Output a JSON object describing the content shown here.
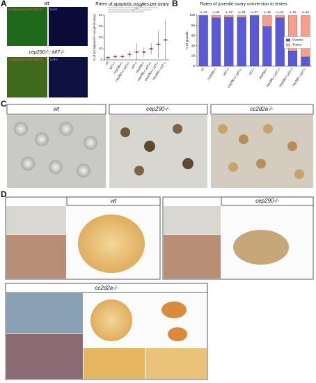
{
  "panel_labels": [
    "A",
    "B",
    "C",
    "D"
  ],
  "panel_a": {
    "row1_title": "wt",
    "row2_title": "cep290-/-; kif7-/-",
    "stain_left": "cCaspase3 DAPI DiOC6",
    "stain_right": "DAPI"
  },
  "panel_c": {
    "titles": [
      "wt",
      "cep290-/-",
      "cc2d2a-/-"
    ]
  },
  "panel_d": {
    "titles": [
      "wt",
      "cep290-/-",
      "cc2d2a-/-"
    ]
  },
  "chart_data": [
    {
      "type": "errorbar",
      "title": "Rates of apoptotic oocytes per ovary",
      "y_label": "% of (cCaspase3+ oocytes/ovary)",
      "categories": [
        "wt",
        "kif7+/-",
        "cep290+/-",
        "cep290+/-;kif7+/-",
        "kif7-/-",
        "cep290-/-",
        "cep290-/-;kif7+/-",
        "cep290+/-;kif7-/-",
        "cep290-/-;kif7-/-"
      ],
      "values": [
        2,
        3,
        3,
        5,
        7,
        7,
        10,
        14,
        18
      ],
      "errors": [
        1,
        2,
        2,
        3,
        8,
        4,
        5,
        12,
        18
      ],
      "color": "#d62728",
      "significance": [
        "***",
        "***",
        "**",
        "*"
      ],
      "ylim": [
        0,
        40
      ],
      "yticks": [
        0,
        10,
        20,
        30,
        40
      ]
    },
    {
      "type": "stacked_bar",
      "title": "Rates of juvenile ovary conversion to testes",
      "y_label": "% Of gonads",
      "categories": [
        "wt",
        "cep290+/-",
        "kif7+/-",
        "cep290+/-;kif7+/-",
        "kif7-/-",
        "cep290-/-",
        "cep290-/-;kif7+/-",
        "cep290+/-;kif7-/-",
        "cep290-/-;kif7-/-"
      ],
      "annotations": [
        "n=24",
        "n=26",
        "n=27",
        "n=33",
        "n=27",
        "n=19",
        "n=23",
        "n=15",
        "n=16"
      ],
      "series": [
        {
          "name": "Ovaries",
          "color": "#5a5ad8",
          "values": [
            100,
            95,
            96,
            96,
            100,
            78,
            95,
            30,
            18
          ]
        },
        {
          "name": "Testes",
          "color": "#f4a08c",
          "values": [
            0,
            5,
            4,
            4,
            0,
            22,
            5,
            70,
            82
          ]
        }
      ],
      "legend": "right",
      "ylim": [
        0,
        100
      ],
      "yticks": [
        0,
        20,
        40,
        60,
        80,
        100
      ]
    }
  ]
}
